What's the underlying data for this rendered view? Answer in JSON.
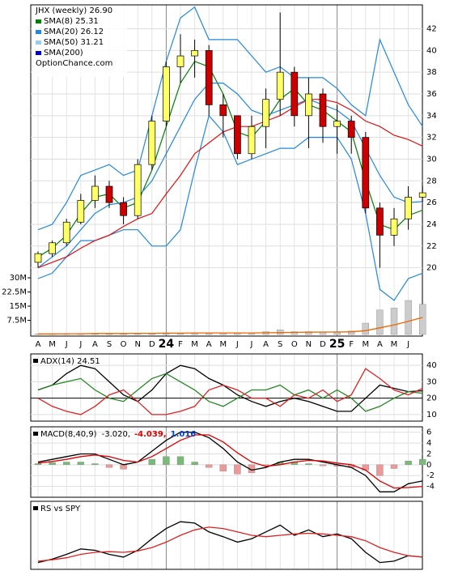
{
  "chart_data": [
    {
      "type": "candlestick",
      "title": "JHX (weekly) 26.90",
      "watermark": "OptionChance.com",
      "categories": [
        "A",
        "M",
        "J",
        "J",
        "A",
        "S",
        "O",
        "N",
        "D",
        "24",
        "F",
        "M",
        "A",
        "M",
        "J",
        "J",
        "A",
        "S",
        "O",
        "N",
        "D",
        "25",
        "F",
        "M",
        "A",
        "M",
        "J",
        null
      ],
      "open": [
        20.5,
        21.3,
        22.3,
        24.2,
        26.2,
        27.5,
        26,
        24.8,
        29.5,
        33.5,
        38.5,
        39.5,
        40,
        35,
        34,
        30.5,
        33,
        35.5,
        38,
        34,
        36,
        33,
        33.5,
        32,
        25.5,
        23,
        24.5,
        26.5
      ],
      "high": [
        21.5,
        22.5,
        24.5,
        26.8,
        28.5,
        28,
        26.5,
        30,
        34,
        39,
        41.5,
        41,
        40.5,
        36,
        34,
        34,
        36.5,
        43.5,
        38.5,
        37.5,
        36.5,
        35,
        34,
        32.5,
        26,
        25.5,
        27.5,
        27.5
      ],
      "low": [
        20,
        21,
        22,
        24,
        25.5,
        25.5,
        24,
        24.5,
        29,
        33,
        37,
        37.5,
        34,
        32,
        30,
        30,
        31,
        34,
        33,
        31,
        31.5,
        30.5,
        30.5,
        25,
        20,
        22,
        23.5,
        26
      ],
      "close": [
        21.3,
        22.3,
        24.2,
        26.2,
        27.5,
        26,
        24.8,
        29.5,
        33.5,
        38.5,
        39.5,
        40,
        35,
        34,
        30.5,
        33,
        35.5,
        38,
        34,
        36,
        33,
        33.5,
        32,
        25.5,
        23,
        24.5,
        26.5,
        26.9
      ],
      "up_color": "#ffff66",
      "down_color": "#cc0000",
      "ylim": [
        19.3,
        44.2
      ],
      "yticks": [
        20,
        22,
        24,
        26,
        28,
        30,
        32,
        34,
        36,
        38,
        40,
        42
      ],
      "grid": true,
      "series": [
        {
          "name": "SMA(8) 25.31",
          "color": "#008000",
          "values": [
            21,
            21.8,
            23,
            25,
            26.5,
            26.8,
            25.5,
            26,
            29,
            33,
            37,
            39,
            38.5,
            36,
            32.5,
            32,
            33.5,
            35.5,
            36.5,
            35,
            34.5,
            33.5,
            32.5,
            28,
            24,
            23.5,
            24.8,
            25.3
          ]
        },
        {
          "name": "SMA(20) 26.12",
          "color": "#2288dd",
          "values": [
            20,
            21,
            22,
            23.5,
            25,
            25.8,
            26,
            26.5,
            28,
            30.5,
            33,
            35.5,
            37,
            37,
            36,
            34.5,
            34,
            34.5,
            35,
            35.5,
            35,
            34.5,
            33.5,
            31,
            28.5,
            26.5,
            26,
            26.1
          ]
        },
        {
          "name": "SMA(50) 31.21",
          "color": "#99ccee",
          "line_color": "#dd1111",
          "values": [
            20,
            20.5,
            21,
            21.8,
            22.5,
            23,
            23.8,
            24.5,
            25,
            26.8,
            28.5,
            30.5,
            31.5,
            32.5,
            33,
            33,
            33.5,
            34,
            34.8,
            35.5,
            35.5,
            35.2,
            34.5,
            33.5,
            33,
            32.2,
            31.8,
            31.2
          ]
        },
        {
          "name": "SMA(200)",
          "color": "#0000cc"
        }
      ],
      "bands": {
        "color": "#2288dd",
        "upper": [
          23.5,
          24,
          26,
          28.5,
          29,
          29.5,
          28.5,
          29,
          34,
          39,
          43,
          44,
          41,
          41,
          41,
          39.5,
          38,
          38.5,
          37.5,
          37.5,
          37.5,
          36.5,
          35,
          34,
          41,
          38,
          35,
          33
        ],
        "lower": [
          19,
          19.5,
          21,
          22.5,
          22.5,
          23,
          23.5,
          23.5,
          22,
          22,
          23.5,
          29,
          34,
          32.5,
          29.5,
          30,
          30.5,
          31,
          31,
          32,
          32,
          32,
          30,
          25,
          18,
          17,
          19,
          19.5
        ]
      }
    },
    {
      "type": "volume",
      "ylim": [
        0,
        35600000
      ],
      "yticks": [
        {
          "value": 7500000,
          "label": "7.5M"
        },
        {
          "value": 15000000,
          "label": "15M"
        },
        {
          "value": 22500000,
          "label": "22.5M"
        },
        {
          "value": 30000000,
          "label": "30M"
        }
      ],
      "series": [
        {
          "kind": "bar",
          "color": "#cccccc",
          "values": [
            300000,
            300000,
            400000,
            500000,
            500000,
            500000,
            600000,
            600000,
            700000,
            800000,
            800000,
            800000,
            900000,
            800000,
            800000,
            900000,
            1500000,
            2500000,
            1500000,
            1500000,
            1200000,
            1500000,
            1800000,
            6000000,
            13000000,
            14000000,
            18000000,
            16000000
          ]
        },
        {
          "kind": "line",
          "color": "#ee6600",
          "values": [
            300000,
            300000,
            400000,
            400000,
            500000,
            500000,
            500000,
            600000,
            600000,
            700000,
            700000,
            800000,
            800000,
            800000,
            800000,
            800000,
            900000,
            1000000,
            1100000,
            1200000,
            1300000,
            1300000,
            1400000,
            2000000,
            3500000,
            5000000,
            7000000,
            9000000
          ]
        }
      ]
    },
    {
      "type": "line",
      "title": "ADX(14) 24.51",
      "ylim": [
        6,
        47
      ],
      "yticks": [
        10,
        20,
        30,
        40
      ],
      "grid": true,
      "series": [
        {
          "color": "#000000",
          "values": [
            25,
            28,
            35,
            40,
            38,
            30,
            22,
            18,
            25,
            35,
            40,
            38,
            32,
            28,
            22,
            18,
            15,
            18,
            20,
            18,
            15,
            12,
            12,
            20,
            28,
            26,
            24,
            24.5
          ]
        },
        {
          "color": "#228822",
          "values": [
            25,
            28,
            30,
            32,
            25,
            20,
            18,
            25,
            32,
            35,
            30,
            25,
            18,
            15,
            20,
            25,
            25,
            28,
            22,
            25,
            20,
            25,
            20,
            12,
            15,
            20,
            24,
            23
          ]
        },
        {
          "color": "#dd2222",
          "values": [
            20,
            15,
            12,
            10,
            15,
            22,
            25,
            18,
            10,
            10,
            12,
            15,
            25,
            28,
            25,
            20,
            20,
            15,
            22,
            20,
            25,
            18,
            22,
            38,
            32,
            25,
            22,
            26
          ]
        }
      ]
    },
    {
      "type": "line",
      "title": "MACD(8,40,9)",
      "ylim": [
        -6,
        7
      ],
      "yticks": [
        -4,
        -2,
        0,
        2,
        4,
        6
      ],
      "grid": true,
      "series": [
        {
          "name": "-3.020,",
          "color": "#000000",
          "values": [
            0.5,
            1,
            1.5,
            2,
            2,
            1,
            0,
            0.5,
            2.5,
            4.5,
            6,
            6,
            5,
            3,
            0.5,
            -1,
            -0.5,
            0.5,
            1,
            1,
            0.5,
            0,
            -0.5,
            -2,
            -5,
            -5,
            -3.5,
            -3
          ]
        },
        {
          "name": "-4.039,",
          "color": "#dd0000",
          "values": [
            0.3,
            0.6,
            1,
            1.5,
            1.8,
            1.5,
            0.8,
            0.5,
            1.5,
            3,
            4.5,
            5.5,
            5.5,
            4.2,
            2.2,
            0.5,
            -0.3,
            0,
            0.5,
            0.8,
            0.7,
            0.3,
            0,
            -1,
            -3,
            -4.3,
            -4.2,
            -4
          ]
        },
        {
          "name": "1.016",
          "kind": "histogram",
          "color": "#0044cc",
          "up_color": "#77bb77",
          "down_color": "#ee9999",
          "values": [
            0.2,
            0.4,
            0.5,
            0.5,
            0.2,
            -0.5,
            -0.8,
            0,
            1,
            1.5,
            1.5,
            0.5,
            -0.5,
            -1.2,
            -1.7,
            -1.5,
            -0.2,
            0.5,
            0.5,
            0.2,
            -0.2,
            -0.3,
            -0.5,
            -1,
            -2,
            -0.7,
            0.7,
            1
          ]
        }
      ]
    },
    {
      "type": "line",
      "title": "RS vs SPY",
      "ylim": [
        0,
        100
      ],
      "grid": false,
      "series": [
        {
          "color": "#000000",
          "values": [
            10,
            15,
            22,
            30,
            28,
            22,
            18,
            28,
            45,
            60,
            70,
            68,
            55,
            48,
            40,
            45,
            55,
            65,
            50,
            58,
            48,
            52,
            45,
            25,
            10,
            12,
            20,
            18
          ]
        },
        {
          "color": "#dd2222",
          "values": [
            12,
            14,
            17,
            22,
            25,
            26,
            25,
            27,
            32,
            40,
            50,
            58,
            62,
            60,
            55,
            50,
            48,
            50,
            52,
            53,
            52,
            50,
            48,
            42,
            32,
            25,
            20,
            18
          ]
        }
      ]
    }
  ]
}
